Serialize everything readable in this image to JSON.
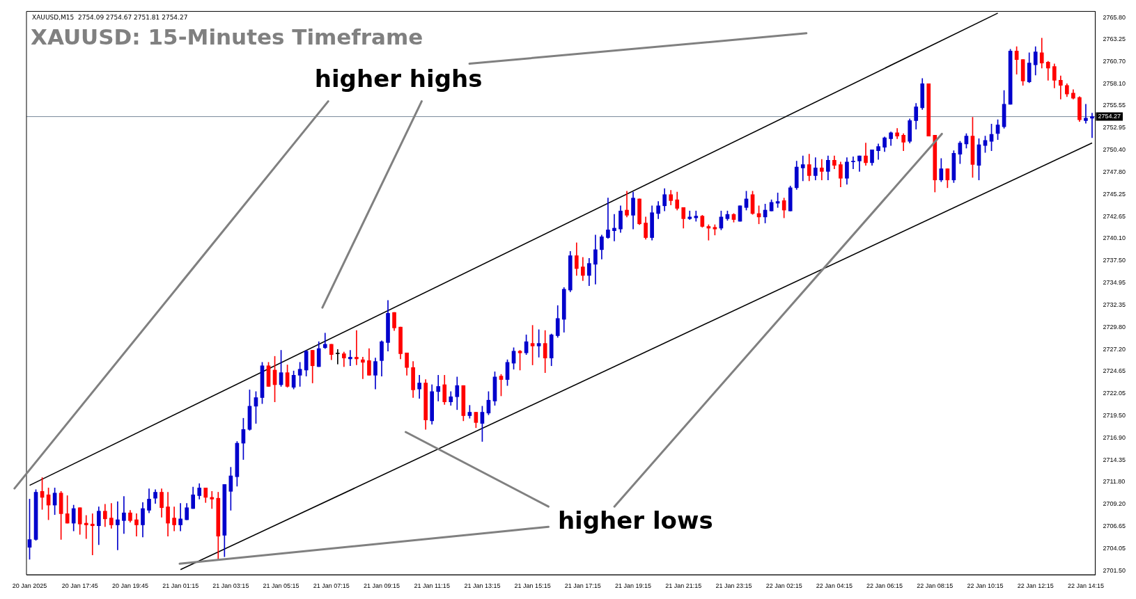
{
  "chart_data": {
    "type": "candlestick",
    "title": "XAUUSD: 15-Minutes Timeframe",
    "annotations": [
      "XAUUSD,M15  2754.09 2754.67 2751.81 2754.27",
      "higher highs",
      "higher lows"
    ],
    "categories": [
      "20 Jan 2025",
      null,
      null,
      null,
      null,
      null,
      null,
      null,
      "20 Jan 17:45",
      null,
      null,
      null,
      null,
      null,
      null,
      null,
      "20 Jan 19:45",
      null,
      null,
      null,
      null,
      null,
      null,
      null,
      "21 Jan 01:15",
      null,
      null,
      null,
      null,
      null,
      null,
      null,
      "21 Jan 03:15",
      null,
      null,
      null,
      null,
      null,
      null,
      null,
      "21 Jan 05:15",
      null,
      null,
      null,
      null,
      null,
      null,
      null,
      "21 Jan 07:15",
      null,
      null,
      null,
      null,
      null,
      null,
      null,
      "21 Jan 09:15",
      null,
      null,
      null,
      null,
      null,
      null,
      null,
      "21 Jan 11:15",
      null,
      null,
      null,
      null,
      null,
      null,
      null,
      "21 Jan 13:15",
      null,
      null,
      null,
      null,
      null,
      null,
      null,
      "21 Jan 15:15",
      null,
      null,
      null,
      null,
      null,
      null,
      null,
      "21 Jan 17:15",
      null,
      null,
      null,
      null,
      null,
      null,
      null,
      "21 Jan 19:15",
      null,
      null,
      null,
      null,
      null,
      null,
      null,
      "21 Jan 21:15",
      null,
      null,
      null,
      null,
      null,
      null,
      null,
      "21 Jan 23:15",
      null,
      null,
      null,
      null,
      null,
      null,
      null,
      "22 Jan 02:15",
      null,
      null,
      null,
      null,
      null,
      null,
      null,
      "22 Jan 04:15",
      null,
      null,
      null,
      null,
      null,
      null,
      null,
      "22 Jan 06:15",
      null,
      null,
      null,
      null,
      null,
      null,
      null,
      "22 Jan 08:15",
      null,
      null,
      null,
      null,
      null,
      null,
      null,
      "22 Jan 10:15",
      null,
      null,
      null,
      null,
      null,
      null,
      null,
      "22 Jan 12:15",
      null,
      null,
      null,
      null,
      null,
      null,
      null,
      "22 Jan 14:15",
      null
    ],
    "ohlc": [
      [
        2704.2,
        2709.8,
        2702.8,
        2705.1
      ],
      [
        2705.1,
        2710.9,
        2705.0,
        2710.6
      ],
      [
        2710.7,
        2712.3,
        2708.6,
        2710.0
      ],
      [
        2710.3,
        2711.1,
        2707.4,
        2709.1
      ],
      [
        2709.1,
        2711.1,
        2708.0,
        2710.5
      ],
      [
        2710.5,
        2710.7,
        2705.1,
        2708.1
      ],
      [
        2708.1,
        2710.2,
        2707.0,
        2707.0
      ],
      [
        2707.0,
        2709.1,
        2706.1,
        2708.7
      ],
      [
        2708.8,
        2708.8,
        2705.7,
        2706.9
      ],
      [
        2707.0,
        2707.9,
        2705.2,
        2706.8
      ],
      [
        2706.9,
        2708.1,
        2703.3,
        2706.7
      ],
      [
        2706.7,
        2708.9,
        2704.5,
        2708.4
      ],
      [
        2708.4,
        2709.2,
        2706.6,
        2707.5
      ],
      [
        2707.6,
        2709.3,
        2706.4,
        2706.8
      ],
      [
        2706.8,
        2709.5,
        2703.9,
        2707.4
      ],
      [
        2707.3,
        2710.1,
        2705.8,
        2708.2
      ],
      [
        2708.2,
        2708.5,
        2707.1,
        2707.3
      ],
      [
        2707.4,
        2708.1,
        2705.5,
        2706.8
      ],
      [
        2706.8,
        2709.4,
        2705.4,
        2708.7
      ],
      [
        2708.5,
        2711.0,
        2708.2,
        2709.8
      ],
      [
        2709.9,
        2710.9,
        2709.3,
        2710.6
      ],
      [
        2710.6,
        2711.0,
        2707.7,
        2708.8
      ],
      [
        2708.9,
        2710.6,
        2705.5,
        2707.0
      ],
      [
        2707.6,
        2708.9,
        2706.1,
        2706.8
      ],
      [
        2706.8,
        2709.3,
        2706.1,
        2707.5
      ],
      [
        2707.4,
        2709.3,
        2707.4,
        2708.8
      ],
      [
        2708.7,
        2711.2,
        2708.7,
        2710.3
      ],
      [
        2710.2,
        2711.6,
        2709.8,
        2711.1
      ],
      [
        2711.1,
        2711.1,
        2709.4,
        2710.0
      ],
      [
        2710.0,
        2710.7,
        2708.7,
        2709.8
      ],
      [
        2709.9,
        2710.6,
        2702.8,
        2705.5
      ],
      [
        2705.6,
        2711.5,
        2703.1,
        2711.5
      ],
      [
        2710.7,
        2713.5,
        2708.5,
        2712.5
      ],
      [
        2712.4,
        2716.5,
        2711.3,
        2716.3
      ],
      [
        2716.3,
        2719.2,
        2714.4,
        2717.9
      ],
      [
        2717.9,
        2722.5,
        2717.8,
        2720.6
      ],
      [
        2720.6,
        2722.3,
        2718.6,
        2721.6
      ],
      [
        2721.6,
        2725.7,
        2720.9,
        2725.3
      ],
      [
        2725.3,
        2725.7,
        2722.9,
        2722.9
      ],
      [
        2724.8,
        2726.4,
        2721.1,
        2723.1
      ],
      [
        2723.1,
        2727.1,
        2722.9,
        2724.5
      ],
      [
        2724.5,
        2725.4,
        2722.8,
        2722.9
      ],
      [
        2722.8,
        2724.7,
        2722.6,
        2724.2
      ],
      [
        2724.2,
        2725.7,
        2722.9,
        2724.9
      ],
      [
        2724.8,
        2727.1,
        2724.1,
        2727.0
      ],
      [
        2727.1,
        2727.1,
        2723.3,
        2725.3
      ],
      [
        2725.2,
        2728.1,
        2725.2,
        2727.3
      ],
      [
        2727.4,
        2729.1,
        2727.3,
        2727.8
      ],
      [
        2727.8,
        2727.8,
        2726.0,
        2726.6
      ],
      [
        2726.7,
        2727.2,
        2725.5,
        2726.7
      ],
      [
        2726.7,
        2726.9,
        2725.2,
        2726.2
      ],
      [
        2726.1,
        2727.1,
        2725.3,
        2726.3
      ],
      [
        2726.3,
        2729.4,
        2725.4,
        2726.1
      ],
      [
        2726.0,
        2726.3,
        2723.8,
        2725.7
      ],
      [
        2725.9,
        2727.3,
        2724.2,
        2724.2
      ],
      [
        2724.2,
        2726.2,
        2722.6,
        2725.8
      ],
      [
        2725.9,
        2728.2,
        2724.1,
        2728.1
      ],
      [
        2728.0,
        2732.9,
        2727.0,
        2731.4
      ],
      [
        2731.5,
        2731.5,
        2729.4,
        2729.7
      ],
      [
        2729.8,
        2729.8,
        2726.1,
        2726.7
      ],
      [
        2726.8,
        2726.8,
        2724.2,
        2725.1
      ],
      [
        2725.1,
        2725.8,
        2721.6,
        2722.5
      ],
      [
        2722.6,
        2724.2,
        2721.5,
        2723.3
      ],
      [
        2723.3,
        2723.7,
        2717.9,
        2719.0
      ],
      [
        2718.9,
        2723.1,
        2718.5,
        2722.3
      ],
      [
        2722.3,
        2724.2,
        2721.2,
        2722.9
      ],
      [
        2723.1,
        2724.2,
        2720.8,
        2721.1
      ],
      [
        2721.1,
        2722.3,
        2720.7,
        2721.7
      ],
      [
        2721.7,
        2724.0,
        2720.2,
        2723.0
      ],
      [
        2723.0,
        2723.0,
        2718.9,
        2719.5
      ],
      [
        2719.5,
        2720.7,
        2719.2,
        2719.9
      ],
      [
        2719.9,
        2719.9,
        2718.1,
        2718.7
      ],
      [
        2718.6,
        2720.6,
        2716.5,
        2719.9
      ],
      [
        2719.8,
        2722.3,
        2719.6,
        2721.3
      ],
      [
        2721.2,
        2724.6,
        2720.7,
        2724.0
      ],
      [
        2724.1,
        2724.3,
        2721.8,
        2723.7
      ],
      [
        2723.7,
        2726.0,
        2723.0,
        2725.7
      ],
      [
        2725.6,
        2727.4,
        2724.9,
        2727.0
      ],
      [
        2727.0,
        2727.1,
        2724.8,
        2726.8
      ],
      [
        2726.8,
        2728.9,
        2726.6,
        2728.1
      ],
      [
        2727.9,
        2730.0,
        2725.4,
        2727.6
      ],
      [
        2727.6,
        2729.5,
        2726.3,
        2727.9
      ],
      [
        2727.9,
        2729.4,
        2724.5,
        2726.2
      ],
      [
        2726.2,
        2729.0,
        2725.3,
        2728.9
      ],
      [
        2728.8,
        2732.3,
        2728.6,
        2730.8
      ],
      [
        2730.7,
        2734.4,
        2729.2,
        2734.2
      ],
      [
        2734.1,
        2738.6,
        2733.9,
        2738.1
      ],
      [
        2738.1,
        2739.6,
        2735.8,
        2736.6
      ],
      [
        2736.8,
        2737.9,
        2735.2,
        2735.8
      ],
      [
        2735.8,
        2737.8,
        2734.6,
        2737.2
      ],
      [
        2737.1,
        2740.5,
        2734.8,
        2738.8
      ],
      [
        2738.8,
        2740.5,
        2737.7,
        2740.3
      ],
      [
        2740.2,
        2744.8,
        2740.1,
        2741.1
      ],
      [
        2741.0,
        2742.9,
        2739.8,
        2741.3
      ],
      [
        2741.2,
        2743.9,
        2740.8,
        2743.3
      ],
      [
        2743.4,
        2745.6,
        2742.6,
        2742.8
      ],
      [
        2742.8,
        2745.5,
        2741.2,
        2744.8
      ],
      [
        2744.7,
        2744.7,
        2741.7,
        2741.8
      ],
      [
        2741.9,
        2742.6,
        2740.0,
        2740.2
      ],
      [
        2740.2,
        2743.9,
        2739.9,
        2743.1
      ],
      [
        2743.0,
        2744.4,
        2742.4,
        2743.9
      ],
      [
        2743.9,
        2745.9,
        2743.3,
        2745.2
      ],
      [
        2745.2,
        2745.7,
        2744.0,
        2744.5
      ],
      [
        2744.6,
        2745.5,
        2743.4,
        2743.6
      ],
      [
        2743.7,
        2743.7,
        2741.3,
        2742.4
      ],
      [
        2742.4,
        2743.3,
        2742.3,
        2742.6
      ],
      [
        2742.5,
        2743.3,
        2742.1,
        2742.7
      ],
      [
        2742.7,
        2742.8,
        2741.4,
        2741.5
      ],
      [
        2741.5,
        2741.7,
        2739.9,
        2741.3
      ],
      [
        2741.4,
        2741.7,
        2740.5,
        2741.2
      ],
      [
        2741.3,
        2743.3,
        2741.1,
        2742.6
      ],
      [
        2742.4,
        2743.3,
        2742.2,
        2742.9
      ],
      [
        2742.9,
        2743.0,
        2742.0,
        2742.3
      ],
      [
        2742.1,
        2743.9,
        2742.1,
        2743.9
      ],
      [
        2743.7,
        2745.6,
        2743.4,
        2744.7
      ],
      [
        2745.2,
        2745.6,
        2742.9,
        2743.0
      ],
      [
        2743.0,
        2743.9,
        2741.8,
        2742.6
      ],
      [
        2742.6,
        2744.1,
        2741.9,
        2743.4
      ],
      [
        2743.3,
        2744.6,
        2743.3,
        2744.3
      ],
      [
        2744.2,
        2745.4,
        2743.7,
        2744.4
      ],
      [
        2744.5,
        2744.8,
        2742.5,
        2743.4
      ],
      [
        2743.3,
        2746.2,
        2743.3,
        2746.0
      ],
      [
        2746.0,
        2749.1,
        2745.8,
        2748.4
      ],
      [
        2748.3,
        2749.7,
        2746.8,
        2748.7
      ],
      [
        2748.7,
        2749.9,
        2746.8,
        2747.4
      ],
      [
        2747.4,
        2749.5,
        2746.9,
        2748.3
      ],
      [
        2748.3,
        2749.3,
        2746.9,
        2747.9
      ],
      [
        2747.9,
        2749.7,
        2746.9,
        2749.2
      ],
      [
        2749.2,
        2749.7,
        2748.2,
        2748.6
      ],
      [
        2748.7,
        2749.0,
        2746.1,
        2747.1
      ],
      [
        2747.1,
        2749.5,
        2746.4,
        2749.0
      ],
      [
        2749.0,
        2749.6,
        2748.2,
        2749.1
      ],
      [
        2749.1,
        2749.7,
        2747.9,
        2749.7
      ],
      [
        2749.7,
        2751.2,
        2748.6,
        2748.9
      ],
      [
        2748.9,
        2750.4,
        2748.6,
        2750.4
      ],
      [
        2750.3,
        2751.1,
        2749.3,
        2750.8
      ],
      [
        2750.7,
        2751.9,
        2750.2,
        2751.8
      ],
      [
        2751.7,
        2752.5,
        2750.9,
        2752.4
      ],
      [
        2752.4,
        2752.9,
        2751.7,
        2752.0
      ],
      [
        2752.1,
        2752.3,
        2750.3,
        2751.3
      ],
      [
        2751.4,
        2754.0,
        2751.2,
        2753.8
      ],
      [
        2753.8,
        2755.8,
        2752.8,
        2755.4
      ],
      [
        2755.3,
        2758.7,
        2755.1,
        2758.1
      ],
      [
        2758.1,
        2758.1,
        2752.0,
        2752.0
      ],
      [
        2752.1,
        2752.1,
        2745.5,
        2746.9
      ],
      [
        2746.9,
        2749.4,
        2746.7,
        2748.2
      ],
      [
        2748.2,
        2748.2,
        2746.0,
        2746.9
      ],
      [
        2746.9,
        2750.3,
        2746.6,
        2750.0
      ],
      [
        2749.9,
        2751.4,
        2748.8,
        2751.2
      ],
      [
        2751.1,
        2752.3,
        2750.6,
        2752.0
      ],
      [
        2752.0,
        2754.2,
        2747.2,
        2748.7
      ],
      [
        2748.6,
        2751.7,
        2746.9,
        2751.0
      ],
      [
        2750.9,
        2752.0,
        2750.1,
        2751.5
      ],
      [
        2751.4,
        2753.4,
        2750.3,
        2752.2
      ],
      [
        2752.3,
        2753.9,
        2751.6,
        2753.3
      ],
      [
        2753.1,
        2757.3,
        2752.9,
        2755.7
      ],
      [
        2755.7,
        2762.1,
        2755.7,
        2761.9
      ],
      [
        2761.9,
        2762.4,
        2759.2,
        2760.9
      ],
      [
        2760.9,
        2760.9,
        2757.9,
        2758.4
      ],
      [
        2758.3,
        2761.7,
        2758.2,
        2760.5
      ],
      [
        2760.3,
        2762.4,
        2759.1,
        2761.8
      ],
      [
        2761.7,
        2763.4,
        2759.9,
        2760.5
      ],
      [
        2760.6,
        2760.7,
        2758.5,
        2759.9
      ],
      [
        2760.1,
        2760.4,
        2757.6,
        2758.5
      ],
      [
        2758.5,
        2759.0,
        2756.3,
        2757.9
      ],
      [
        2757.9,
        2758.1,
        2756.6,
        2756.9
      ],
      [
        2757.0,
        2757.4,
        2756.3,
        2756.4
      ],
      [
        2756.5,
        2756.6,
        2753.7,
        2753.9
      ],
      [
        2753.8,
        2755.7,
        2753.5,
        2754.1
      ],
      [
        2754.09,
        2754.67,
        2751.81,
        2754.27
      ]
    ],
    "colors": [
      "#0000cc",
      "#0000cc",
      "#ff0000",
      "#ff0000",
      "#0000cc",
      "#ff0000",
      "#ff0000",
      "#0000cc",
      "#ff0000",
      "#ff0000",
      "#ff0000",
      "#0000cc",
      "#ff0000",
      "#ff0000",
      "#0000cc",
      "#0000cc",
      "#ff0000",
      "#ff0000",
      "#0000cc",
      "#0000cc",
      "#0000cc",
      "#ff0000",
      "#ff0000",
      "#ff0000",
      "#0000cc",
      "#0000cc",
      "#0000cc",
      "#0000cc",
      "#ff0000",
      "#ff0000",
      "#ff0000",
      "#0000cc",
      "#0000cc",
      "#0000cc",
      "#0000cc",
      "#0000cc",
      "#0000cc",
      "#0000cc",
      "#ff0000",
      "#ff0000",
      "#0000cc",
      "#ff0000",
      "#0000cc",
      "#0000cc",
      "#0000cc",
      "#ff0000",
      "#0000cc",
      "#0000cc",
      "#ff0000",
      "#000000",
      "#ff0000",
      "#0000cc",
      "#ff0000",
      "#ff0000",
      "#ff0000",
      "#0000cc",
      "#0000cc",
      "#0000cc",
      "#ff0000",
      "#ff0000",
      "#ff0000",
      "#ff0000",
      "#0000cc",
      "#ff0000",
      "#0000cc",
      "#0000cc",
      "#ff0000",
      "#0000cc",
      "#0000cc",
      "#ff0000",
      "#0000cc",
      "#ff0000",
      "#0000cc",
      "#0000cc",
      "#0000cc",
      "#ff0000",
      "#0000cc",
      "#0000cc",
      "#ff0000",
      "#0000cc",
      "#ff0000",
      "#0000cc",
      "#ff0000",
      "#0000cc",
      "#0000cc",
      "#0000cc",
      "#0000cc",
      "#ff0000",
      "#ff0000",
      "#0000cc",
      "#0000cc",
      "#0000cc",
      "#0000cc",
      "#0000cc",
      "#0000cc",
      "#ff0000",
      "#0000cc",
      "#ff0000",
      "#ff0000",
      "#0000cc",
      "#0000cc",
      "#0000cc",
      "#ff0000",
      "#ff0000",
      "#ff0000",
      "#0000cc",
      "#0000cc",
      "#ff0000",
      "#ff0000",
      "#ff0000",
      "#0000cc",
      "#0000cc",
      "#ff0000",
      "#0000cc",
      "#0000cc",
      "#ff0000",
      "#ff0000",
      "#0000cc",
      "#0000cc",
      "#0000cc",
      "#ff0000",
      "#0000cc",
      "#0000cc",
      "#0000cc",
      "#ff0000",
      "#0000cc",
      "#ff0000",
      "#0000cc",
      "#ff0000",
      "#ff0000",
      "#0000cc",
      "#0000cc",
      "#0000cc",
      "#ff0000",
      "#0000cc",
      "#0000cc",
      "#0000cc",
      "#0000cc",
      "#ff0000",
      "#ff0000",
      "#0000cc",
      "#0000cc",
      "#0000cc",
      "#ff0000",
      "#ff0000",
      "#0000cc",
      "#ff0000",
      "#0000cc",
      "#0000cc",
      "#0000cc",
      "#ff0000",
      "#0000cc",
      "#0000cc",
      "#0000cc",
      "#0000cc",
      "#0000cc",
      "#0000cc",
      "#ff0000",
      "#ff0000",
      "#0000cc",
      "#0000cc",
      "#ff0000",
      "#ff0000",
      "#ff0000",
      "#ff0000",
      "#ff0000",
      "#ff0000",
      "#ff0000",
      "#0000cc",
      "#0000cc"
    ],
    "series": [
      {
        "type": "line",
        "color": "#000000",
        "values": [
          2711.4,
          null,
          null,
          null,
          null,
          null,
          null,
          null,
          null,
          null,
          null,
          null,
          null,
          null,
          null,
          null,
          null,
          null,
          null,
          null,
          null,
          null,
          null,
          null,
          null,
          null,
          null,
          null,
          null,
          null,
          null,
          null,
          null,
          null,
          null,
          null,
          null,
          null,
          null,
          null,
          null,
          null,
          null,
          null,
          null,
          null,
          null,
          null,
          null,
          null,
          null,
          null,
          null,
          null,
          null,
          null,
          null,
          null,
          null,
          null,
          null,
          null,
          null,
          null,
          null,
          null,
          null,
          null,
          null,
          null,
          null,
          null,
          null,
          null,
          null,
          null,
          null,
          null,
          null,
          null,
          null,
          null,
          null,
          null,
          null,
          null,
          null,
          null,
          null,
          null,
          null,
          null,
          null,
          null,
          null,
          null,
          null,
          null,
          null,
          null,
          null,
          null,
          null,
          null,
          null,
          null,
          null,
          null,
          null,
          null,
          null,
          null,
          null,
          null,
          null,
          null,
          null,
          null,
          null,
          null,
          null,
          null,
          null,
          null,
          null,
          null,
          null,
          null,
          null,
          null,
          null,
          null,
          null,
          null,
          null,
          null,
          null,
          null,
          null,
          null,
          null,
          null,
          null,
          null,
          null,
          null,
          null,
          null,
          null,
          null,
          null,
          null,
          null,
          null,
          2766.3,
          null,
          null,
          null,
          null,
          null,
          null,
          null,
          null,
          null,
          null,
          null,
          null,
          null,
          null,
          null
        ]
      },
      {
        "type": "line",
        "color": "#000000",
        "values": [
          null,
          null,
          null,
          null,
          null,
          null,
          null,
          null,
          null,
          null,
          null,
          null,
          null,
          null,
          null,
          null,
          null,
          null,
          null,
          null,
          null,
          null,
          null,
          null,
          2701.6,
          null,
          null,
          null,
          null,
          null,
          null,
          null,
          null,
          null,
          null,
          null,
          null,
          null,
          null,
          null,
          null,
          null,
          null,
          null,
          null,
          null,
          null,
          null,
          null,
          null,
          null,
          null,
          null,
          null,
          null,
          null,
          null,
          null,
          null,
          null,
          null,
          null,
          null,
          null,
          null,
          null,
          null,
          null,
          null,
          null,
          null,
          null,
          null,
          null,
          null,
          null,
          null,
          null,
          null,
          null,
          null,
          null,
          null,
          null,
          null,
          null,
          null,
          null,
          null,
          null,
          null,
          null,
          null,
          null,
          null,
          null,
          null,
          null,
          null,
          null,
          null,
          null,
          null,
          null,
          null,
          null,
          null,
          null,
          null,
          null,
          null,
          null,
          null,
          null,
          null,
          null,
          null,
          null,
          null,
          null,
          null,
          null,
          null,
          null,
          null,
          null,
          null,
          null,
          null,
          null,
          null,
          null,
          null,
          null,
          null,
          null,
          null,
          null,
          null,
          null,
          null,
          null,
          null,
          null,
          null,
          null,
          null,
          null,
          null,
          null,
          null,
          null,
          null,
          null,
          null,
          null,
          null,
          null,
          null,
          null,
          null,
          null,
          null,
          null,
          null,
          null,
          null,
          null,
          null,
          2751.2
        ]
      }
    ],
    "ref_lines": [
      {
        "axis": "y",
        "value": 2754.27,
        "label": "2754.27",
        "color": "#778899"
      }
    ],
    "ylim": [
      2701.0,
      2766.5
    ],
    "yticks": [
      {
        "value": 2701.5,
        "label": "2701.50"
      },
      {
        "value": 2704.05,
        "label": "2704.05"
      },
      {
        "value": 2706.65,
        "label": "2706.65"
      },
      {
        "value": 2709.2,
        "label": "2709.20"
      },
      {
        "value": 2711.8,
        "label": "2711.80"
      },
      {
        "value": 2714.35,
        "label": "2714.35"
      },
      {
        "value": 2716.9,
        "label": "2716.90"
      },
      {
        "value": 2719.5,
        "label": "2719.50"
      },
      {
        "value": 2722.05,
        "label": "2722.05"
      },
      {
        "value": 2724.65,
        "label": "2724.65"
      },
      {
        "value": 2727.2,
        "label": "2727.20"
      },
      {
        "value": 2729.8,
        "label": "2729.80"
      },
      {
        "value": 2732.35,
        "label": "2732.35"
      },
      {
        "value": 2734.95,
        "label": "2734.95"
      },
      {
        "value": 2737.5,
        "label": "2737.50"
      },
      {
        "value": 2740.1,
        "label": "2740.10"
      },
      {
        "value": 2742.65,
        "label": "2742.65"
      },
      {
        "value": 2745.25,
        "label": "2745.25"
      },
      {
        "value": 2747.8,
        "label": "2747.80"
      },
      {
        "value": 2750.4,
        "label": "2750.40"
      },
      {
        "value": 2752.95,
        "label": "2752.95"
      },
      {
        "value": 2755.55,
        "label": "2755.55"
      },
      {
        "value": 2758.1,
        "label": "2758.10"
      },
      {
        "value": 2760.7,
        "label": "2760.70"
      },
      {
        "value": 2763.25,
        "label": "2763.25"
      },
      {
        "value": 2765.8,
        "label": "2765.80"
      }
    ],
    "grid": false,
    "legend": false
  }
}
